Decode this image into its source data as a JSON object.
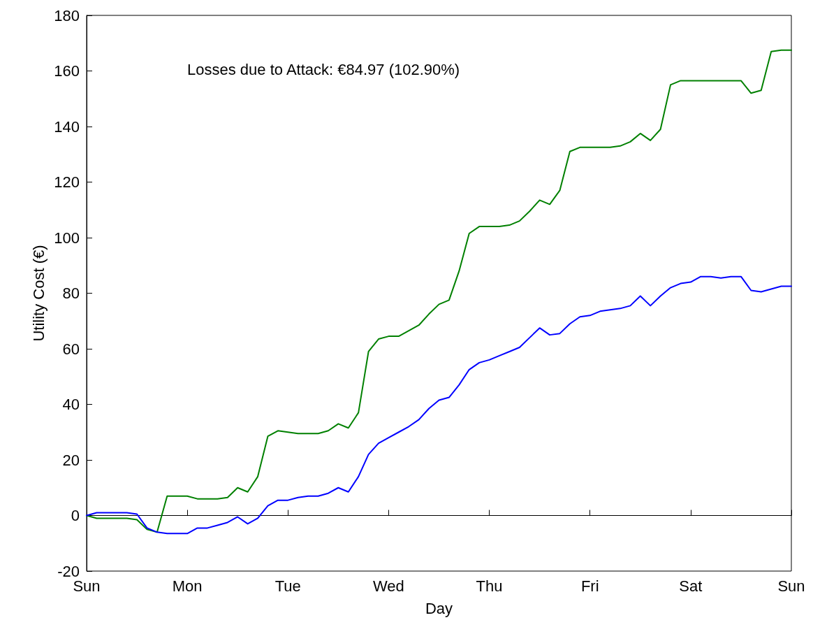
{
  "chart_data": {
    "type": "line",
    "xlabel": "Day",
    "ylabel": "Utility Cost (€)",
    "annotations": [
      "Losses due to Attack: €84.97 (102.90%)"
    ],
    "categories": [
      "Sun",
      null,
      null,
      null,
      null,
      null,
      null,
      null,
      null,
      null,
      "Mon",
      null,
      null,
      null,
      null,
      null,
      null,
      null,
      null,
      null,
      "Tue",
      null,
      null,
      null,
      null,
      null,
      null,
      null,
      null,
      null,
      "Wed",
      null,
      null,
      null,
      null,
      null,
      null,
      null,
      null,
      null,
      "Thu",
      null,
      null,
      null,
      null,
      null,
      null,
      null,
      null,
      null,
      "Fri",
      null,
      null,
      null,
      null,
      null,
      null,
      null,
      null,
      null,
      "Sat",
      null,
      null,
      null,
      null,
      null,
      null,
      null,
      null,
      null,
      "Sun"
    ],
    "ylim": [
      -20,
      180
    ],
    "yticks": [
      -20,
      0,
      20,
      40,
      60,
      80,
      100,
      120,
      140,
      160,
      180
    ],
    "marker": "none",
    "line_style": "solid",
    "series": [
      {
        "color": "#008000",
        "values": [
          0,
          -1,
          -1,
          -1,
          -1,
          -1.5,
          -5,
          -6,
          7,
          7,
          7,
          6,
          6,
          6,
          6.5,
          10,
          8.5,
          14,
          28.5,
          30.5,
          30,
          29.5,
          29.5,
          29.5,
          30.5,
          33,
          31.5,
          37,
          59,
          63.5,
          64.5,
          64.5,
          66.5,
          68.5,
          72.5,
          76,
          77.5,
          88,
          101.5,
          104,
          104,
          104,
          104.5,
          106,
          109.5,
          113.5,
          112,
          117,
          131,
          132.5,
          132.5,
          132.5,
          132.5,
          133,
          134.5,
          137.5,
          135,
          139,
          155,
          156.5,
          156.5,
          156.5,
          156.5,
          156.5,
          156.5,
          156.5,
          152,
          153,
          167,
          167.5,
          167.5
        ]
      },
      {
        "color": "#0000ff",
        "values": [
          0,
          1,
          1,
          1,
          1,
          0.5,
          -4.5,
          -6,
          -6.5,
          -6.5,
          -6.5,
          -4.5,
          -4.5,
          -3.5,
          -2.5,
          -0.5,
          -3,
          -1,
          3.5,
          5.5,
          5.5,
          6.5,
          7,
          7,
          8,
          10,
          8.5,
          14,
          22,
          26,
          28,
          30,
          32,
          34.5,
          38.5,
          41.5,
          42.5,
          47,
          52.5,
          55,
          56,
          57.5,
          59,
          60.5,
          64,
          67.5,
          65,
          65.5,
          69,
          71.5,
          72,
          73.5,
          74,
          74.5,
          75.5,
          79,
          75.5,
          79,
          82,
          83.5,
          84,
          86,
          86,
          85.5,
          86,
          86,
          81,
          80.5,
          81.5,
          82.5,
          82.5
        ]
      }
    ]
  }
}
